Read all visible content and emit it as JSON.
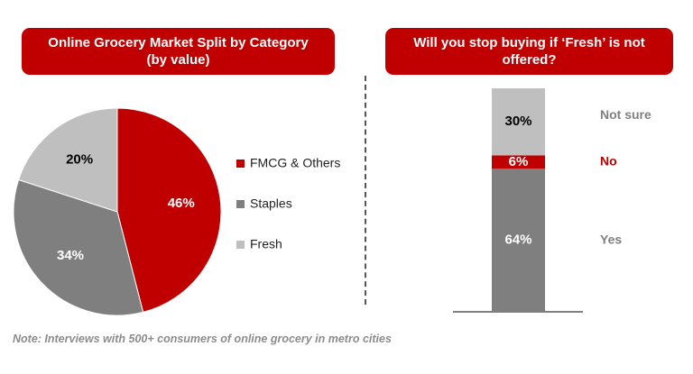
{
  "colors": {
    "red": "#c00000",
    "dark_gray": "#7f7f7f",
    "light_gray": "#bfbfbf",
    "text_gray": "#7f7f7f"
  },
  "chart_data": [
    {
      "type": "pie",
      "title_line1": "Online Grocery Market Split by Category",
      "title_line2": "(by value)",
      "slices": [
        {
          "label": "FMCG & Others",
          "value": 46,
          "value_label": "46%",
          "color": "#c00000"
        },
        {
          "label": "Staples",
          "value": 34,
          "value_label": "34%",
          "color": "#7f7f7f"
        },
        {
          "label": "Fresh",
          "value": 20,
          "value_label": "20%",
          "color": "#bfbfbf"
        }
      ],
      "legend_position": "right"
    },
    {
      "type": "bar",
      "stacked": true,
      "title_line1": "Will you stop buying if ‘Fresh’ is not",
      "title_line2": "offered?",
      "segments": [
        {
          "label": "Yes",
          "value": 64,
          "value_label": "64%",
          "color": "#7f7f7f"
        },
        {
          "label": "No",
          "value": 6,
          "value_label": "6%",
          "color": "#c00000"
        },
        {
          "label": "Not sure",
          "value": 30,
          "value_label": "30%",
          "color": "#bfbfbf"
        }
      ],
      "ylim": [
        0,
        100
      ]
    }
  ],
  "note": "Note: Interviews with 500+ consumers of online grocery in metro cities"
}
